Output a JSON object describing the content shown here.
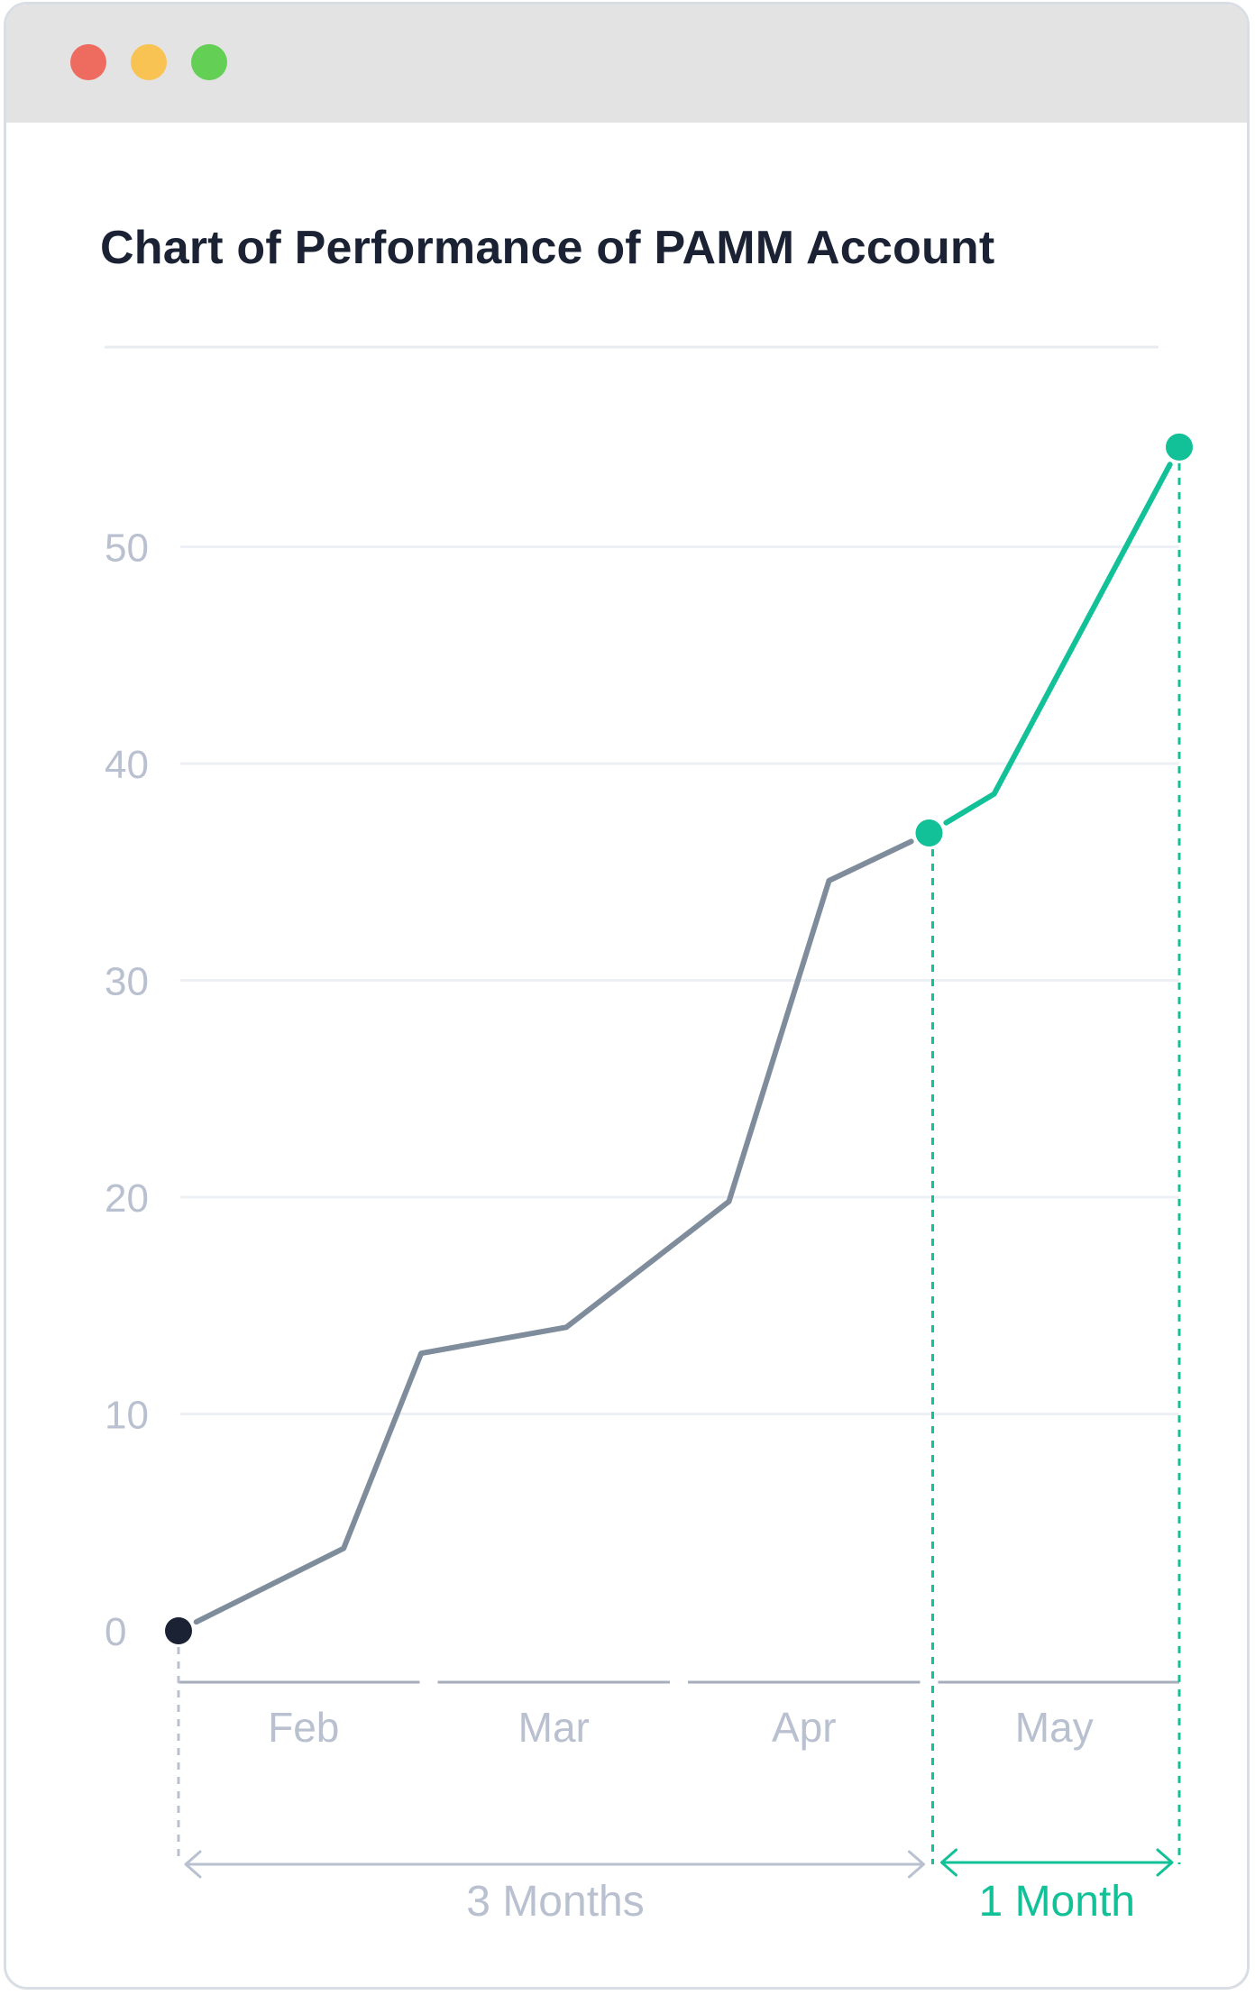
{
  "window": {
    "controls": [
      {
        "name": "close",
        "color": "#ee6b5f"
      },
      {
        "name": "minimize",
        "color": "#f8c352"
      },
      {
        "name": "maximize",
        "color": "#63cf55"
      }
    ]
  },
  "colors": {
    "past_line": "#7f8c9c",
    "highlight": "#12c197",
    "start_point": "#1b2233",
    "axis_label": "#b9c0cf",
    "grid": "#edf0f4",
    "baseline": "#a7aebb",
    "span_arrow": "#b9c0cf"
  },
  "chart_data": {
    "type": "line",
    "title": "Chart of Performance of PAMM Account",
    "xlabel": "",
    "ylabel": "",
    "ylim": [
      0,
      58
    ],
    "y_ticks": [
      0,
      10,
      20,
      30,
      40,
      50
    ],
    "grid": true,
    "x_range": [
      0,
      4
    ],
    "months": [
      "Feb",
      "Mar",
      "Apr",
      "May"
    ],
    "series": [
      {
        "segment": "first-3-months",
        "points": [
          {
            "x": 0,
            "y": 0
          },
          {
            "x": 0.66,
            "y": 3.8
          },
          {
            "x": 0.97,
            "y": 12.8
          },
          {
            "x": 1.55,
            "y": 14.0
          },
          {
            "x": 2.2,
            "y": 19.8
          },
          {
            "x": 2.6,
            "y": 34.6
          },
          {
            "x": 3.0,
            "y": 36.8
          }
        ]
      },
      {
        "segment": "last-month",
        "points": [
          {
            "x": 3.0,
            "y": 36.8
          },
          {
            "x": 3.26,
            "y": 38.6
          },
          {
            "x": 4.0,
            "y": 54.6
          }
        ]
      }
    ],
    "spans": [
      {
        "label": "3 Months",
        "from": 0,
        "to": 3
      },
      {
        "label": "1 Month",
        "from": 3,
        "to": 4
      }
    ]
  }
}
